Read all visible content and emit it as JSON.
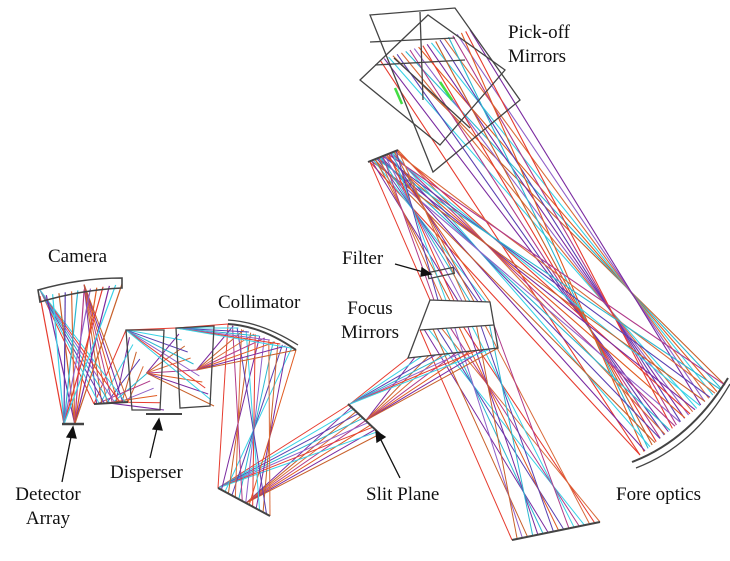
{
  "labels": {
    "pickoff_1": "Pick-off",
    "pickoff_2": "Mirrors",
    "camera": "Camera",
    "filter": "Filter",
    "collimator": "Collimator",
    "focus_1": "Focus",
    "focus_2": "Mirrors",
    "detector_1": "Detector",
    "detector_2": "Array",
    "disperser": "Disperser",
    "slit_plane": "Slit Plane",
    "fore_optics": "Fore optics"
  },
  "colors": {
    "ray_palette": [
      "#e63b2e",
      "#7a2aa0",
      "#38d2e6",
      "#c8602a",
      "#5a3fb0",
      "#d96a3a",
      "#2bb8d0",
      "#b03a8a",
      "#9060c8",
      "#e05a20"
    ],
    "mirror_outline": "#444444",
    "green_ray": "#44dd44",
    "label_text": "#111111"
  }
}
